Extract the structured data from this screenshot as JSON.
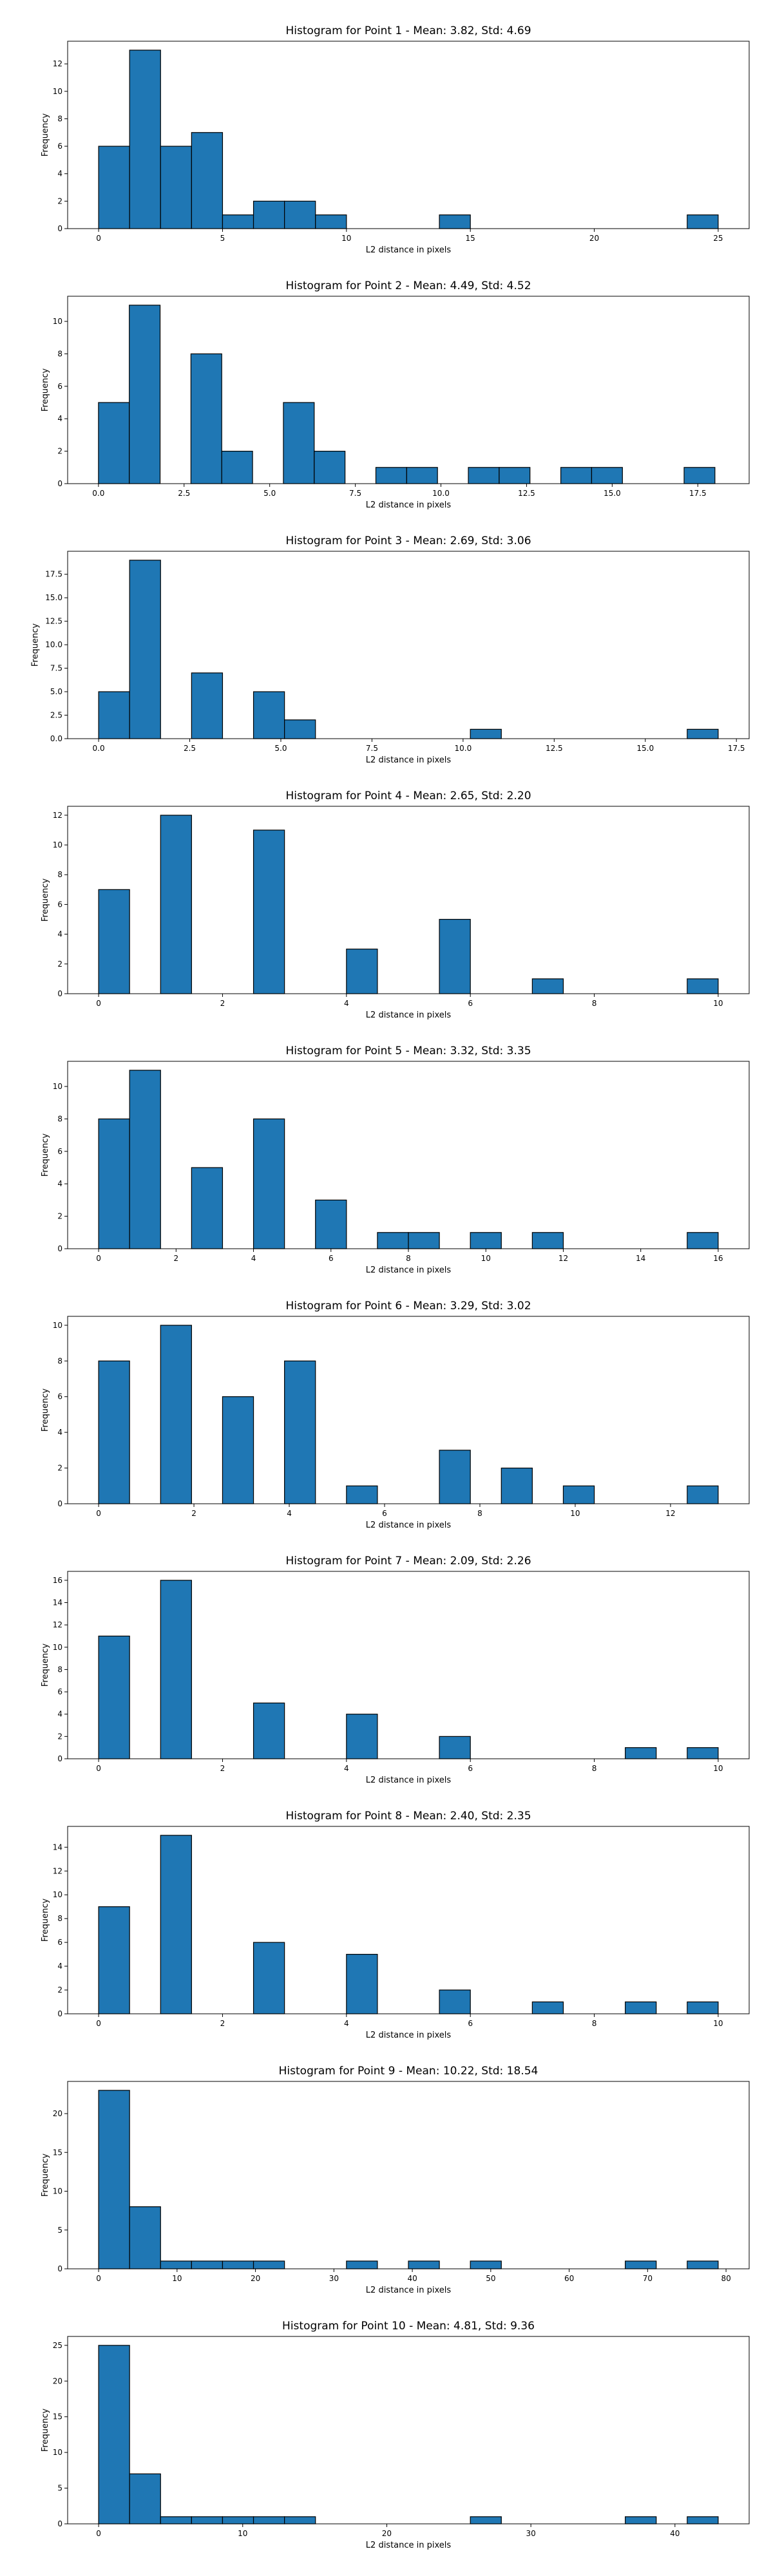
{
  "chart_data": [
    {
      "type": "bar",
      "title": "Histogram for Point 1 - Mean: 3.82, Std: 4.69",
      "xlabel": "L2 distance in pixels",
      "ylabel": "Frequency",
      "bar_color": "#1f77b4",
      "edge_color": "#000000",
      "xlim": [
        -1.25,
        26.25
      ],
      "ylim": [
        0,
        13.65
      ],
      "xticks": [
        0,
        5,
        10,
        15,
        20,
        25
      ],
      "xtick_labels": [
        "0",
        "5",
        "10",
        "15",
        "20",
        "25"
      ],
      "yticks": [
        0,
        2,
        4,
        6,
        8,
        10,
        12
      ],
      "ytick_labels": [
        "0",
        "2",
        "4",
        "6",
        "8",
        "10",
        "12"
      ],
      "bin_edges": [
        0,
        1.25,
        2.5,
        3.75,
        5,
        6.25,
        7.5,
        8.75,
        10,
        11.25,
        12.5,
        13.75,
        15,
        16.25,
        17.5,
        18.75,
        20,
        21.25,
        22.5,
        23.75,
        25
      ],
      "values": [
        6,
        13,
        6,
        7,
        1,
        2,
        2,
        1,
        0,
        0,
        0,
        1,
        0,
        0,
        0,
        0,
        0,
        0,
        0,
        1
      ]
    },
    {
      "type": "bar",
      "title": "Histogram for Point 2 - Mean: 4.49, Std: 4.52",
      "xlabel": "L2 distance in pixels",
      "ylabel": "Frequency",
      "bar_color": "#1f77b4",
      "edge_color": "#000000",
      "xlim": [
        -0.9,
        19.0
      ],
      "ylim": [
        0,
        11.55
      ],
      "xticks": [
        0,
        2.5,
        5,
        7.5,
        10,
        12.5,
        15,
        17.5
      ],
      "xtick_labels": [
        "0.0",
        "2.5",
        "5.0",
        "7.5",
        "10.0",
        "12.5",
        "15.0",
        "17.5"
      ],
      "yticks": [
        0,
        2,
        4,
        6,
        8,
        10
      ],
      "ytick_labels": [
        "0",
        "2",
        "4",
        "6",
        "8",
        "10"
      ],
      "bin_edges": [
        0,
        0.9,
        1.8,
        2.7,
        3.6,
        4.5,
        5.4,
        6.3,
        7.2,
        8.1,
        9.0,
        9.9,
        10.8,
        11.7,
        12.6,
        13.5,
        14.4,
        15.3,
        16.2,
        17.1,
        18.0
      ],
      "values": [
        5,
        11,
        0,
        8,
        2,
        0,
        5,
        2,
        0,
        1,
        1,
        0,
        1,
        1,
        0,
        1,
        1,
        0,
        0,
        1
      ]
    },
    {
      "type": "bar",
      "title": "Histogram for Point 3 - Mean: 2.69, Std: 3.06",
      "xlabel": "L2 distance in pixels",
      "ylabel": "Frequency",
      "bar_color": "#1f77b4",
      "edge_color": "#000000",
      "xlim": [
        -0.85,
        17.85
      ],
      "ylim": [
        0,
        19.95
      ],
      "xticks": [
        0,
        2.5,
        5,
        7.5,
        10,
        12.5,
        15,
        17.5
      ],
      "xtick_labels": [
        "0.0",
        "2.5",
        "5.0",
        "7.5",
        "10.0",
        "12.5",
        "15.0",
        "17.5"
      ],
      "yticks": [
        0,
        2.5,
        5,
        7.5,
        10,
        12.5,
        15,
        17.5
      ],
      "ytick_labels": [
        "0.0",
        "2.5",
        "5.0",
        "7.5",
        "10.0",
        "12.5",
        "15.0",
        "17.5"
      ],
      "bin_edges": [
        0,
        0.85,
        1.7,
        2.55,
        3.4,
        4.25,
        5.1,
        5.95,
        6.8,
        7.65,
        8.5,
        9.35,
        10.2,
        11.05,
        11.9,
        12.75,
        13.6,
        14.45,
        15.3,
        16.15,
        17.0
      ],
      "values": [
        5,
        19,
        0,
        7,
        0,
        5,
        2,
        0,
        0,
        0,
        0,
        0,
        1,
        0,
        0,
        0,
        0,
        0,
        0,
        1
      ]
    },
    {
      "type": "bar",
      "title": "Histogram for Point 4 - Mean: 2.65, Std: 2.20",
      "xlabel": "L2 distance in pixels",
      "ylabel": "Frequency",
      "bar_color": "#1f77b4",
      "edge_color": "#000000",
      "xlim": [
        -0.5,
        10.5
      ],
      "ylim": [
        0,
        12.6
      ],
      "xticks": [
        0,
        2,
        4,
        6,
        8,
        10
      ],
      "xtick_labels": [
        "0",
        "2",
        "4",
        "6",
        "8",
        "10"
      ],
      "yticks": [
        0,
        2,
        4,
        6,
        8,
        10,
        12
      ],
      "ytick_labels": [
        "0",
        "2",
        "4",
        "6",
        "8",
        "10",
        "12"
      ],
      "bin_edges": [
        0,
        0.5,
        1,
        1.5,
        2,
        2.5,
        3,
        3.5,
        4,
        4.5,
        5,
        5.5,
        6,
        6.5,
        7,
        7.5,
        8,
        8.5,
        9,
        9.5,
        10
      ],
      "values": [
        7,
        0,
        12,
        0,
        0,
        11,
        0,
        0,
        3,
        0,
        0,
        5,
        0,
        0,
        1,
        0,
        0,
        0,
        0,
        1
      ]
    },
    {
      "type": "bar",
      "title": "Histogram for Point 5 - Mean: 3.32, Std: 3.35",
      "xlabel": "L2 distance in pixels",
      "ylabel": "Frequency",
      "bar_color": "#1f77b4",
      "edge_color": "#000000",
      "xlim": [
        -0.8,
        16.8
      ],
      "ylim": [
        0,
        11.55
      ],
      "xticks": [
        0,
        2,
        4,
        6,
        8,
        10,
        12,
        14,
        16
      ],
      "xtick_labels": [
        "0",
        "2",
        "4",
        "6",
        "8",
        "10",
        "12",
        "14",
        "16"
      ],
      "yticks": [
        0,
        2,
        4,
        6,
        8,
        10
      ],
      "ytick_labels": [
        "0",
        "2",
        "4",
        "6",
        "8",
        "10"
      ],
      "bin_edges": [
        0,
        0.8,
        1.6,
        2.4,
        3.2,
        4.0,
        4.8,
        5.6,
        6.4,
        7.2,
        8.0,
        8.8,
        9.6,
        10.4,
        11.2,
        12.0,
        12.8,
        13.6,
        14.4,
        15.2,
        16.0
      ],
      "values": [
        8,
        11,
        0,
        5,
        0,
        8,
        0,
        3,
        0,
        1,
        1,
        0,
        1,
        0,
        1,
        0,
        0,
        0,
        0,
        1
      ]
    },
    {
      "type": "bar",
      "title": "Histogram for Point 6 - Mean: 3.29, Std: 3.02",
      "xlabel": "L2 distance in pixels",
      "ylabel": "Frequency",
      "bar_color": "#1f77b4",
      "edge_color": "#000000",
      "xlim": [
        -0.65,
        13.65
      ],
      "ylim": [
        0,
        10.5
      ],
      "xticks": [
        0,
        2,
        4,
        6,
        8,
        10,
        12
      ],
      "xtick_labels": [
        "0",
        "2",
        "4",
        "6",
        "8",
        "10",
        "12"
      ],
      "yticks": [
        0,
        2,
        4,
        6,
        8,
        10
      ],
      "ytick_labels": [
        "0",
        "2",
        "4",
        "6",
        "8",
        "10"
      ],
      "bin_edges": [
        0,
        0.65,
        1.3,
        1.95,
        2.6,
        3.25,
        3.9,
        4.55,
        5.2,
        5.85,
        6.5,
        7.15,
        7.8,
        8.45,
        9.1,
        9.75,
        10.4,
        11.05,
        11.7,
        12.35,
        13.0
      ],
      "values": [
        8,
        0,
        10,
        0,
        6,
        0,
        8,
        0,
        1,
        0,
        0,
        3,
        0,
        2,
        0,
        1,
        0,
        0,
        0,
        1
      ]
    },
    {
      "type": "bar",
      "title": "Histogram for Point 7 - Mean: 2.09, Std: 2.26",
      "xlabel": "L2 distance in pixels",
      "ylabel": "Frequency",
      "bar_color": "#1f77b4",
      "edge_color": "#000000",
      "xlim": [
        -0.5,
        10.5
      ],
      "ylim": [
        0,
        16.8
      ],
      "xticks": [
        0,
        2,
        4,
        6,
        8,
        10
      ],
      "xtick_labels": [
        "0",
        "2",
        "4",
        "6",
        "8",
        "10"
      ],
      "yticks": [
        0,
        2,
        4,
        6,
        8,
        10,
        12,
        14,
        16
      ],
      "ytick_labels": [
        "0",
        "2",
        "4",
        "6",
        "8",
        "10",
        "12",
        "14",
        "16"
      ],
      "bin_edges": [
        0,
        0.5,
        1,
        1.5,
        2,
        2.5,
        3,
        3.5,
        4,
        4.5,
        5,
        5.5,
        6,
        6.5,
        7,
        7.5,
        8,
        8.5,
        9,
        9.5,
        10
      ],
      "values": [
        11,
        0,
        16,
        0,
        0,
        5,
        0,
        0,
        4,
        0,
        0,
        2,
        0,
        0,
        0,
        0,
        0,
        1,
        0,
        1
      ]
    },
    {
      "type": "bar",
      "title": "Histogram for Point 8 - Mean: 2.40, Std: 2.35",
      "xlabel": "L2 distance in pixels",
      "ylabel": "Frequency",
      "bar_color": "#1f77b4",
      "edge_color": "#000000",
      "xlim": [
        -0.5,
        10.5
      ],
      "ylim": [
        0,
        15.75
      ],
      "xticks": [
        0,
        2,
        4,
        6,
        8,
        10
      ],
      "xtick_labels": [
        "0",
        "2",
        "4",
        "6",
        "8",
        "10"
      ],
      "yticks": [
        0,
        2,
        4,
        6,
        8,
        10,
        12,
        14
      ],
      "ytick_labels": [
        "0",
        "2",
        "4",
        "6",
        "8",
        "10",
        "12",
        "14"
      ],
      "bin_edges": [
        0,
        0.5,
        1,
        1.5,
        2,
        2.5,
        3,
        3.5,
        4,
        4.5,
        5,
        5.5,
        6,
        6.5,
        7,
        7.5,
        8,
        8.5,
        9,
        9.5,
        10
      ],
      "values": [
        9,
        0,
        15,
        0,
        0,
        6,
        0,
        0,
        5,
        0,
        0,
        2,
        0,
        0,
        1,
        0,
        0,
        1,
        0,
        1
      ]
    },
    {
      "type": "bar",
      "title": "Histogram for Point 9 - Mean: 10.22, Std: 18.54",
      "xlabel": "L2 distance in pixels",
      "ylabel": "Frequency",
      "bar_color": "#1f77b4",
      "edge_color": "#000000",
      "xlim": [
        -3.95,
        82.95
      ],
      "ylim": [
        0,
        24.15
      ],
      "xticks": [
        0,
        10,
        20,
        30,
        40,
        50,
        60,
        70,
        80
      ],
      "xtick_labels": [
        "0",
        "10",
        "20",
        "30",
        "40",
        "50",
        "60",
        "70",
        "80"
      ],
      "yticks": [
        0,
        5,
        10,
        15,
        20
      ],
      "ytick_labels": [
        "0",
        "5",
        "10",
        "15",
        "20"
      ],
      "bin_edges": [
        0,
        3.95,
        7.9,
        11.85,
        15.8,
        19.75,
        23.7,
        27.65,
        31.6,
        35.55,
        39.5,
        43.45,
        47.4,
        51.35,
        55.3,
        59.25,
        63.2,
        67.15,
        71.1,
        75.05,
        79.0
      ],
      "values": [
        23,
        8,
        1,
        1,
        1,
        1,
        0,
        0,
        1,
        0,
        1,
        0,
        1,
        0,
        0,
        0,
        0,
        1,
        0,
        1
      ]
    },
    {
      "type": "bar",
      "title": "Histogram for Point 10 - Mean: 4.81, Std: 9.36",
      "xlabel": "L2 distance in pixels",
      "ylabel": "Frequency",
      "bar_color": "#1f77b4",
      "edge_color": "#000000",
      "xlim": [
        -2.15,
        45.15
      ],
      "ylim": [
        0,
        26.25
      ],
      "xticks": [
        0,
        10,
        20,
        30,
        40
      ],
      "xtick_labels": [
        "0",
        "10",
        "20",
        "30",
        "40"
      ],
      "yticks": [
        0,
        5,
        10,
        15,
        20,
        25
      ],
      "ytick_labels": [
        "0",
        "5",
        "10",
        "15",
        "20",
        "25"
      ],
      "bin_edges": [
        0,
        2.15,
        4.3,
        6.45,
        8.6,
        10.75,
        12.9,
        15.05,
        17.2,
        19.35,
        21.5,
        23.65,
        25.8,
        27.95,
        30.1,
        32.25,
        34.4,
        36.55,
        38.7,
        40.85,
        43.0
      ],
      "values": [
        25,
        7,
        1,
        1,
        1,
        1,
        1,
        0,
        0,
        0,
        0,
        0,
        1,
        0,
        0,
        0,
        0,
        1,
        0,
        1
      ]
    }
  ]
}
